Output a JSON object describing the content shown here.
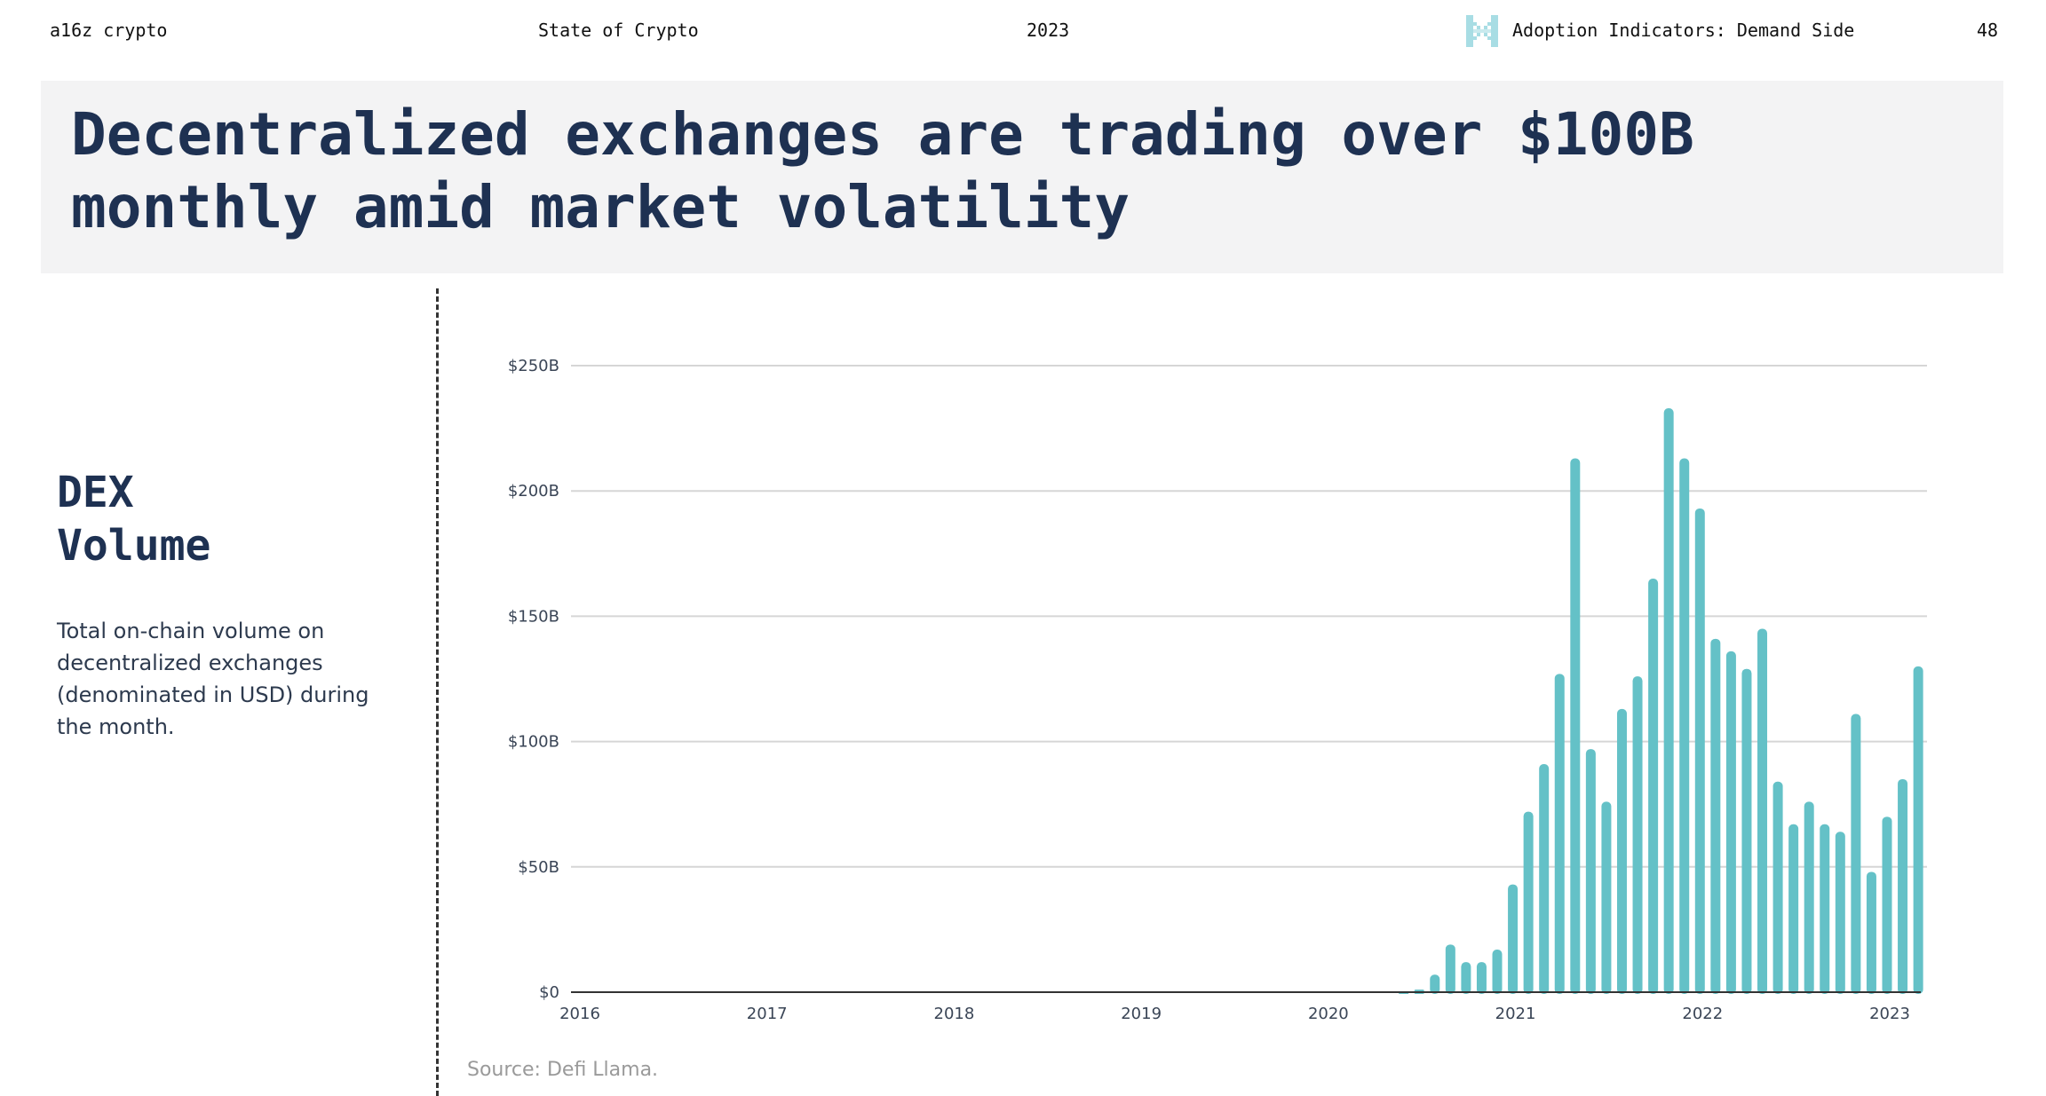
{
  "header": {
    "brand": "a16z crypto",
    "report": "State of Crypto",
    "year": "2023",
    "section": "Adoption Indicators: Demand Side",
    "page_number": "48",
    "section_icon": "a16z-pixel-logo-icon"
  },
  "title": {
    "line1": "Decentralized exchanges are trading over $100B",
    "line2": "monthly amid market volatility"
  },
  "sidebar": {
    "title_line1": "DEX",
    "title_line2": "Volume",
    "description": "Total on-chain volume on decentralized exchanges (denominated in USD) during the month."
  },
  "source": "Source: Defi Llama.",
  "colors": {
    "bar": "#64c1c7",
    "title": "#1e3152",
    "title_bg": "#f3f3f4",
    "grid": "#d6d6d6",
    "axis": "#333333",
    "logo": "#a8dde4"
  },
  "chart_data": {
    "type": "bar",
    "title": "DEX Volume",
    "xlabel": "",
    "ylabel": "",
    "grid": true,
    "ylim": [
      0,
      250
    ],
    "xlim": [
      2016,
      2023.25
    ],
    "y_unit": "USD billions",
    "y_ticks": [
      {
        "value": 0,
        "label": "$0"
      },
      {
        "value": 50,
        "label": "$50B"
      },
      {
        "value": 100,
        "label": "$100B"
      },
      {
        "value": 150,
        "label": "$150B"
      },
      {
        "value": 200,
        "label": "$200B"
      },
      {
        "value": 250,
        "label": "$250B"
      }
    ],
    "x_ticks": [
      {
        "value": 2016,
        "label": "2016"
      },
      {
        "value": 2017,
        "label": "2017"
      },
      {
        "value": 2018,
        "label": "2018"
      },
      {
        "value": 2019,
        "label": "2019"
      },
      {
        "value": 2020,
        "label": "2020"
      },
      {
        "value": 2021,
        "label": "2021"
      },
      {
        "value": 2022,
        "label": "2022"
      },
      {
        "value": 2023,
        "label": "2023"
      }
    ],
    "categories": [
      "2020-06",
      "2020-07",
      "2020-08",
      "2020-09",
      "2020-10",
      "2020-11",
      "2020-12",
      "2021-01",
      "2021-02",
      "2021-03",
      "2021-04",
      "2021-05",
      "2021-06",
      "2021-07",
      "2021-08",
      "2021-09",
      "2021-10",
      "2021-11",
      "2021-12",
      "2022-01",
      "2022-02",
      "2022-03",
      "2022-04",
      "2022-05",
      "2022-06",
      "2022-07",
      "2022-08",
      "2022-09",
      "2022-10",
      "2022-11",
      "2022-12",
      "2023-01",
      "2023-02",
      "2023-03"
    ],
    "values": [
      0.3,
      1,
      7,
      19,
      12,
      12,
      17,
      43,
      72,
      91,
      127,
      213,
      97,
      76,
      113,
      126,
      165,
      233,
      213,
      193,
      141,
      136,
      129,
      145,
      84,
      67,
      76,
      67,
      64,
      111,
      48,
      70,
      85,
      130
    ],
    "series": [
      {
        "name": "DEX Volume",
        "color": "#64c1c7"
      }
    ]
  }
}
